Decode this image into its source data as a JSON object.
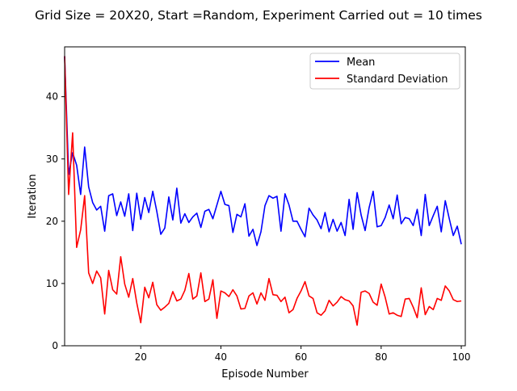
{
  "chart_data": {
    "type": "line",
    "title": "Grid Size = 20X20, Start =Random, Experiment Carried out = 10 times",
    "xlabel": "Episode Number",
    "ylabel": "Iteration",
    "xlim": [
      1,
      101
    ],
    "ylim": [
      0,
      48
    ],
    "grid": false,
    "legend_position": "top-right",
    "xticks": [
      20,
      40,
      60,
      80,
      100
    ],
    "yticks": [
      0,
      10,
      20,
      30,
      40
    ],
    "x": [
      1,
      2,
      3,
      4,
      5,
      6,
      7,
      8,
      9,
      10,
      11,
      12,
      13,
      14,
      15,
      16,
      17,
      18,
      19,
      20,
      21,
      22,
      23,
      24,
      25,
      26,
      27,
      28,
      29,
      30,
      31,
      32,
      33,
      34,
      35,
      36,
      37,
      38,
      39,
      40,
      41,
      42,
      43,
      44,
      45,
      46,
      47,
      48,
      49,
      50,
      51,
      52,
      53,
      54,
      55,
      56,
      57,
      58,
      59,
      60,
      61,
      62,
      63,
      64,
      65,
      66,
      67,
      68,
      69,
      70,
      71,
      72,
      73,
      74,
      75,
      76,
      77,
      78,
      79,
      80,
      81,
      82,
      83,
      84,
      85,
      86,
      87,
      88,
      89,
      90,
      91,
      92,
      93,
      94,
      95,
      96,
      97,
      98,
      99,
      100
    ],
    "series": [
      {
        "name": "Mean",
        "color": "#0000ff",
        "values": [
          46.5,
          27.5,
          31.0,
          29.0,
          24.3,
          31.9,
          25.5,
          23.0,
          21.8,
          22.4,
          18.4,
          24.1,
          24.4,
          20.9,
          23.1,
          20.8,
          24.4,
          18.5,
          24.5,
          20.3,
          23.8,
          21.4,
          24.8,
          21.6,
          17.9,
          18.9,
          23.9,
          20.2,
          25.3,
          19.7,
          21.2,
          19.8,
          20.7,
          21.3,
          19.0,
          21.6,
          21.9,
          20.4,
          22.6,
          24.8,
          22.7,
          22.5,
          18.2,
          21.1,
          20.7,
          22.8,
          17.6,
          18.7,
          16.1,
          18.3,
          22.5,
          24.1,
          23.7,
          24.0,
          18.4,
          24.4,
          22.6,
          20.0,
          20.0,
          18.7,
          17.5,
          22.1,
          21.0,
          20.2,
          18.8,
          21.4,
          18.3,
          20.3,
          18.4,
          19.8,
          17.7,
          23.5,
          18.7,
          24.6,
          21.0,
          18.5,
          22.2,
          24.8,
          19.1,
          19.3,
          20.6,
          22.6,
          20.4,
          24.2,
          19.6,
          20.6,
          20.4,
          19.3,
          21.9,
          17.7,
          24.3,
          19.3,
          20.9,
          22.4,
          18.3,
          23.3,
          20.4,
          17.7,
          19.2,
          16.3
        ]
      },
      {
        "name": "Standard Deviation",
        "color": "#ff0000",
        "values": [
          46.5,
          24.3,
          34.2,
          15.8,
          18.6,
          24.1,
          11.7,
          10.0,
          12.0,
          10.9,
          5.1,
          12.1,
          9.0,
          8.3,
          14.3,
          9.9,
          7.8,
          10.8,
          6.9,
          3.7,
          9.4,
          7.7,
          10.2,
          6.6,
          5.7,
          6.2,
          6.8,
          8.7,
          7.2,
          7.5,
          8.9,
          11.6,
          7.5,
          8.0,
          11.7,
          7.1,
          7.5,
          10.6,
          4.4,
          8.8,
          8.5,
          7.9,
          9.0,
          8.0,
          5.9,
          6.0,
          8.0,
          8.5,
          6.7,
          8.5,
          7.3,
          10.8,
          8.2,
          8.1,
          7.1,
          7.8,
          5.3,
          5.8,
          7.6,
          8.8,
          10.3,
          8.0,
          7.6,
          5.3,
          4.9,
          5.6,
          7.3,
          6.4,
          7.0,
          7.9,
          7.4,
          7.2,
          6.4,
          3.3,
          8.6,
          8.8,
          8.4,
          7.0,
          6.5,
          9.9,
          7.8,
          5.1,
          5.3,
          4.9,
          4.7,
          7.5,
          7.6,
          6.2,
          4.5,
          9.3,
          5.0,
          6.3,
          5.8,
          7.6,
          7.3,
          9.6,
          8.8,
          7.4,
          7.1,
          7.2
        ]
      }
    ]
  }
}
